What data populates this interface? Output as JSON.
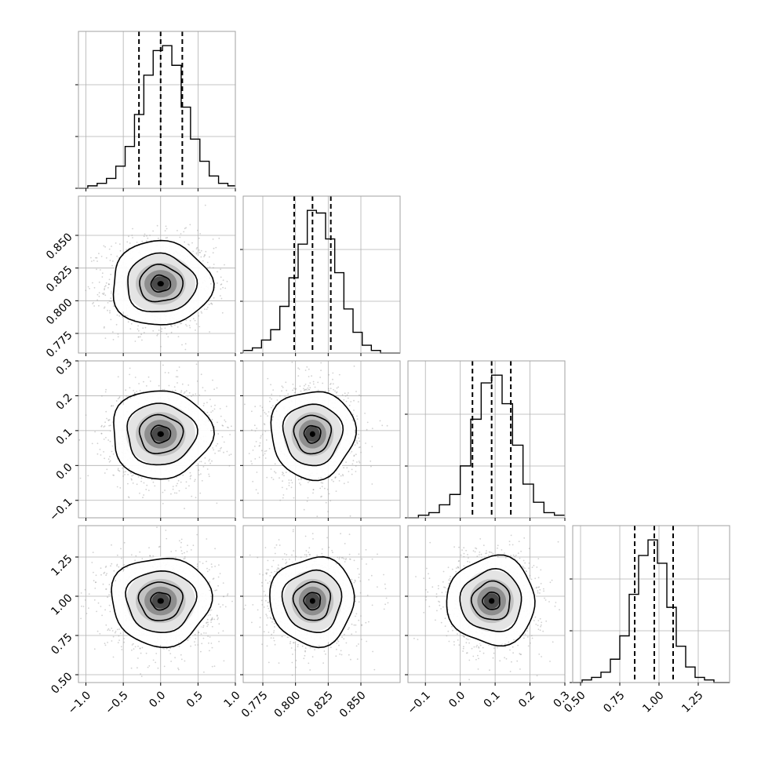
{
  "chart_data": {
    "type": "corner",
    "grid": true,
    "colors": {
      "ink": "#000000",
      "frame": "#a0a0a0",
      "grid": "#b0b0b0",
      "scatter": "#9a9a9a"
    },
    "quantile_lines": "dashed",
    "parameters": [
      {
        "range": [
          -1.1,
          1.0
        ],
        "quantiles": [
          -0.29,
          0.0,
          0.29
        ],
        "ticks": [
          -1.0,
          -0.5,
          0.0,
          0.5,
          1.0
        ],
        "tick_labels": [
          "−1.0",
          "−0.5",
          "0.0",
          "0.5",
          "1.0"
        ],
        "hist_bins": [
          -1.1,
          -0.975,
          -0.85,
          -0.725,
          -0.6,
          -0.475,
          -0.35,
          -0.225,
          -0.1,
          0.025,
          0.15,
          0.275,
          0.4,
          0.525,
          0.65,
          0.775,
          0.9,
          1.0
        ],
        "hist_counts": [
          0,
          1,
          2,
          4,
          9,
          17,
          30,
          46,
          56,
          58,
          50,
          33,
          20,
          11,
          5,
          2,
          1
        ]
      },
      {
        "range": [
          0.76,
          0.88
        ],
        "quantiles": [
          0.799,
          0.813,
          0.827
        ],
        "ticks": [
          0.775,
          0.8,
          0.825,
          0.85
        ],
        "tick_labels": [
          "0.775",
          "0.800",
          "0.825",
          "0.850"
        ],
        "hist_bins": [
          0.76,
          0.767,
          0.774,
          0.781,
          0.788,
          0.795,
          0.802,
          0.809,
          0.816,
          0.823,
          0.83,
          0.837,
          0.844,
          0.851,
          0.858,
          0.865,
          0.88
        ],
        "hist_counts": [
          1,
          2,
          5,
          9,
          18,
          29,
          42,
          55,
          54,
          44,
          31,
          17,
          8,
          3,
          1,
          0
        ]
      },
      {
        "range": [
          -0.15,
          0.3
        ],
        "quantiles": [
          0.035,
          0.09,
          0.145
        ],
        "ticks": [
          -0.1,
          0.0,
          0.1,
          0.2,
          0.3
        ],
        "tick_labels": [
          "−0.1",
          "0.0",
          "0.1",
          "0.2",
          "0.3"
        ],
        "hist_bins": [
          -0.15,
          -0.12,
          -0.09,
          -0.06,
          -0.03,
          0.0,
          0.03,
          0.06,
          0.09,
          0.12,
          0.15,
          0.18,
          0.21,
          0.24,
          0.27,
          0.3
        ],
        "hist_counts": [
          0,
          1,
          2,
          5,
          9,
          20,
          38,
          52,
          55,
          44,
          28,
          13,
          6,
          2,
          1
        ]
      },
      {
        "range": [
          0.45,
          1.45
        ],
        "quantiles": [
          0.845,
          0.97,
          1.09
        ],
        "ticks": [
          0.5,
          0.75,
          1.0,
          1.25
        ],
        "tick_labels": [
          "0.50",
          "0.75",
          "1.00",
          "1.25"
        ],
        "hist_bins": [
          0.45,
          0.51,
          0.57,
          0.63,
          0.69,
          0.75,
          0.81,
          0.87,
          0.93,
          0.99,
          1.05,
          1.11,
          1.17,
          1.23,
          1.29,
          1.35,
          1.45
        ],
        "hist_counts": [
          0,
          1,
          2,
          4,
          9,
          18,
          34,
          49,
          55,
          46,
          29,
          14,
          6,
          2,
          1,
          0
        ]
      }
    ]
  }
}
